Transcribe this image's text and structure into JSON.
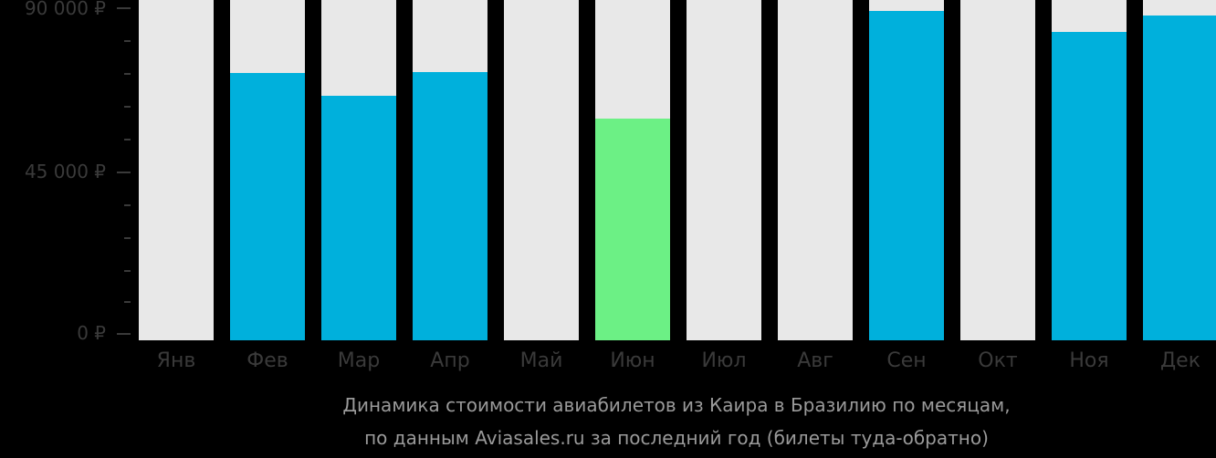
{
  "chart_data": {
    "type": "bar",
    "title": "Динамика стоимости авиабилетов из Каира в Бразилию по месяцам, по данным Aviasales.ru за последний год (билеты туда-обратно)",
    "xlabel": "",
    "ylabel": "",
    "ylim": [
      0,
      90000
    ],
    "yticks": [
      "0 ₽",
      "45 000 ₽",
      "90 000 ₽"
    ],
    "grid": false,
    "legend": null,
    "categories": [
      "Янв",
      "Фев",
      "Мар",
      "Апр",
      "Май",
      "Июн",
      "Июл",
      "Авг",
      "Сен",
      "Окт",
      "Ноя",
      "Дек"
    ],
    "values": [
      null,
      72200,
      66100,
      72500,
      null,
      59900,
      null,
      null,
      89000,
      null,
      83300,
      87800
    ],
    "highlight": {
      "category": "Июн",
      "note": "lowest price month"
    },
    "colors": {
      "bar": "#00b0dc",
      "highlight": "#6cf085",
      "background_bar": "#e8e8e8"
    }
  },
  "axis": {
    "y_labels": {
      "top": "90 000 ₽",
      "mid": "45 000 ₽",
      "zero": "0 ₽"
    }
  },
  "caption": {
    "line1": "Динамика стоимости авиабилетов из Каира в Бразилию по месяцам,",
    "line2": "по данным Aviasales.ru за последний год (билеты туда-обратно)"
  }
}
